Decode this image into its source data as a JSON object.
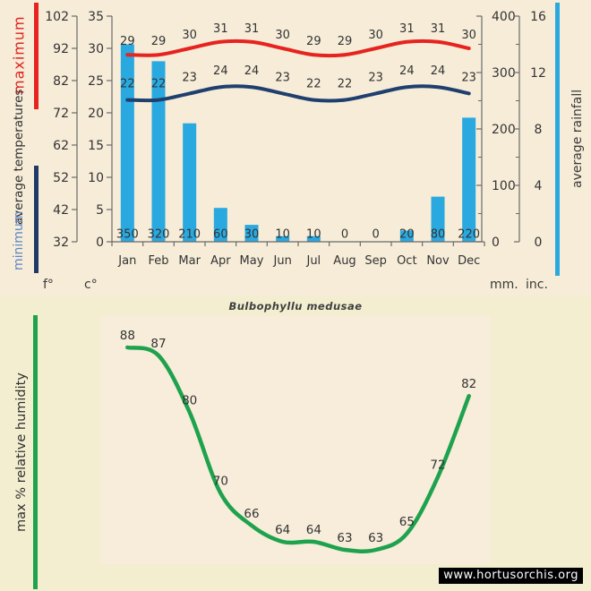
{
  "page": {
    "species_title": "Bulbophyllu medusae",
    "watermark": "www.hortusorchis.org",
    "colors": {
      "page_bg": "#f2eecf",
      "chart_bg": "#f6ecd8",
      "max_temp": "#e6231e",
      "min_temp": "#1f3f6e",
      "min_temp_text": "#5f87c7",
      "rainfall": "#29a9e0",
      "humidity": "#1ea24d",
      "text": "#333333",
      "axis": "#6a6a6a"
    }
  },
  "top_chart": {
    "left_axis_words": {
      "minimum": "minimum",
      "middle": "average temperatures",
      "maximum": "maximum"
    },
    "right_axis_label": "average rainfall",
    "units": {
      "fahrenheit": "f°",
      "celsius": "c°",
      "millimeters": "mm.",
      "inches": "inc."
    }
  },
  "bottom_chart": {
    "left_axis_label": "max % relative humidity"
  },
  "chart_data": [
    {
      "type": "bar",
      "subtype": "climate combo: two temperature lines + rainfall bars",
      "title": "Bulbophyllu medusae",
      "categories": [
        "Jan",
        "Feb",
        "Mar",
        "Apr",
        "May",
        "Jun",
        "Jul",
        "Aug",
        "Sep",
        "Oct",
        "Nov",
        "Dec"
      ],
      "series": [
        {
          "name": "maximum average temperature",
          "kind": "line",
          "unit": "°C",
          "color": "#e6231e",
          "values": [
            29,
            29,
            30,
            31,
            31,
            30,
            29,
            29,
            30,
            31,
            31,
            30
          ]
        },
        {
          "name": "minimum average temperature",
          "kind": "line",
          "unit": "°C",
          "color": "#1f3f6e",
          "values": [
            22,
            22,
            23,
            24,
            24,
            23,
            22,
            22,
            23,
            24,
            24,
            23
          ]
        },
        {
          "name": "average rainfall",
          "kind": "bar",
          "unit": "mm",
          "color": "#29a9e0",
          "values": [
            350,
            320,
            210,
            60,
            30,
            10,
            10,
            0,
            0,
            20,
            80,
            220
          ]
        }
      ],
      "axes": {
        "left_outer": {
          "unit": "f°",
          "ticks": [
            102,
            92,
            82,
            72,
            62,
            52,
            42,
            32
          ]
        },
        "left_inner": {
          "unit": "c°",
          "ticks": [
            35,
            30,
            25,
            20,
            15,
            10,
            5,
            0
          ],
          "range": [
            0,
            35
          ]
        },
        "right_inner": {
          "unit": "mm.",
          "ticks": [
            400,
            300,
            200,
            100,
            0
          ],
          "range": [
            0,
            400
          ]
        },
        "right_outer": {
          "unit": "inc.",
          "ticks": [
            16,
            12,
            8,
            4,
            0
          ],
          "range": [
            0,
            16
          ]
        }
      },
      "grid": false,
      "legend_position": "rotated labels left (temperatures) and right (rainfall)"
    },
    {
      "type": "line",
      "title": "max % relative humidity",
      "categories": [
        "Jan",
        "Feb",
        "Mar",
        "Apr",
        "May",
        "Jun",
        "Jul",
        "Aug",
        "Sep",
        "Oct",
        "Nov",
        "Dec"
      ],
      "categories_hidden": true,
      "series": [
        {
          "name": "max % relative humidity",
          "kind": "line",
          "unit": "%",
          "color": "#1ea24d",
          "values": [
            88,
            87,
            80,
            70,
            66,
            64,
            64,
            63,
            63,
            65,
            72,
            82
          ]
        }
      ],
      "grid": false,
      "value_labels_shown": true
    }
  ]
}
